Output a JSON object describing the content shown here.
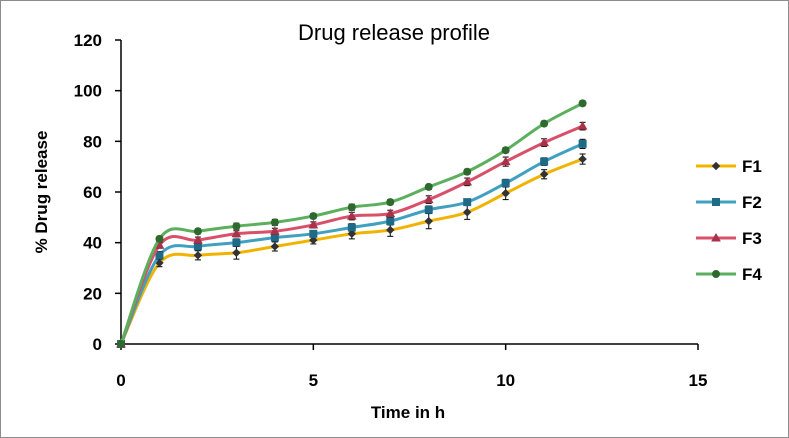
{
  "chart_data": {
    "type": "line",
    "title": "Drug release profile",
    "xlabel": "Time in h",
    "ylabel": "% Drug release",
    "xlim": [
      0,
      15
    ],
    "ylim": [
      0,
      120
    ],
    "x_ticks": [
      0,
      5,
      10,
      15
    ],
    "y_ticks": [
      0,
      20,
      40,
      60,
      80,
      100,
      120
    ],
    "grid": false,
    "legend_position": "right",
    "error_bars": true,
    "smoothed": true,
    "x": [
      0,
      1,
      2,
      3,
      4,
      5,
      6,
      7,
      8,
      9,
      10,
      11,
      12
    ],
    "series": [
      {
        "name": "F1",
        "color": "#f0b400",
        "marker": "diamond",
        "values": [
          0,
          32,
          35,
          36,
          38.5,
          41,
          43.5,
          45,
          48.5,
          52,
          59.5,
          67,
          73
        ],
        "errors": [
          0,
          1.5,
          1.8,
          2.5,
          1.8,
          1.5,
          2.0,
          2.5,
          3.0,
          2.8,
          2.5,
          1.8,
          2.0
        ]
      },
      {
        "name": "F2",
        "color": "#3fa0c0",
        "marker": "square",
        "values": [
          0,
          35,
          38.5,
          40,
          42,
          43.5,
          46,
          48.5,
          53,
          56,
          63.5,
          72,
          79
        ],
        "errors": [
          0,
          1.5,
          1.5,
          1.5,
          1.5,
          1.3,
          1.5,
          1.5,
          1.5,
          1.2,
          1.5,
          1.5,
          1.8
        ]
      },
      {
        "name": "F3",
        "color": "#d9506a",
        "marker": "triangle",
        "values": [
          0,
          39,
          41,
          43.5,
          44.5,
          47,
          50.5,
          51.5,
          57,
          64,
          72,
          79.5,
          86
        ],
        "errors": [
          0,
          1.2,
          1.2,
          1.2,
          1.2,
          1.2,
          1.5,
          1.3,
          1.5,
          1.5,
          1.8,
          1.5,
          1.5
        ]
      },
      {
        "name": "F4",
        "color": "#5caf5c",
        "marker": "star",
        "values": [
          0,
          41.5,
          44.5,
          46.5,
          48,
          50.5,
          54,
          56,
          62,
          68,
          76.5,
          87,
          95
        ],
        "errors": [
          0,
          1.0,
          1.0,
          1.2,
          1.2,
          1.0,
          1.2,
          1.0,
          1.0,
          1.0,
          1.0,
          1.0,
          1.0
        ]
      }
    ]
  }
}
